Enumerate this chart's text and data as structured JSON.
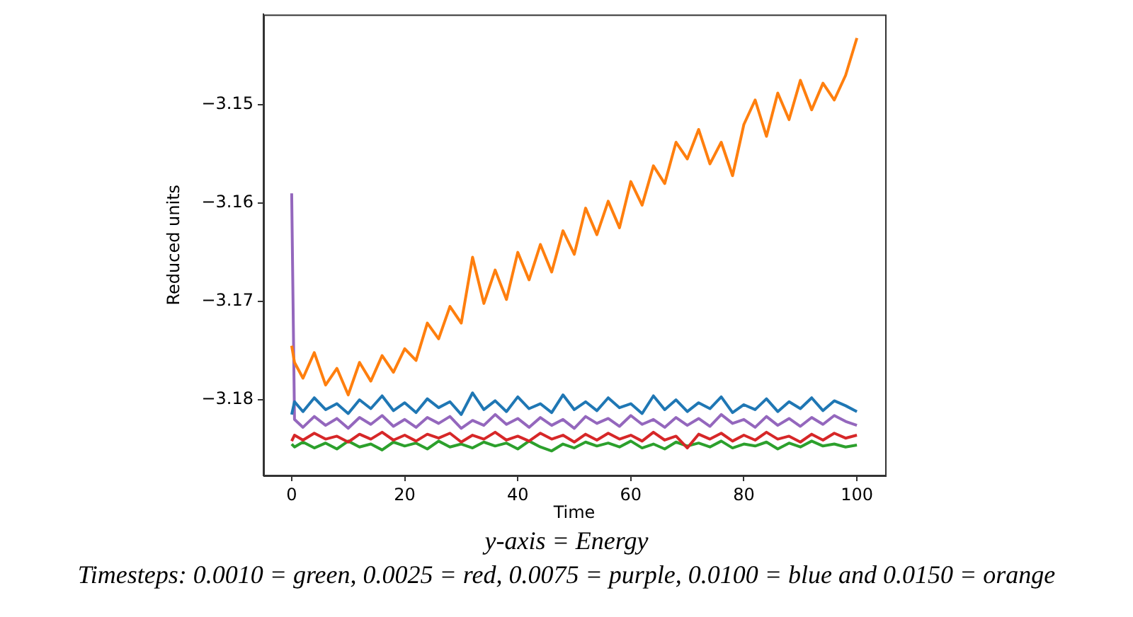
{
  "chart_data": {
    "type": "line",
    "xlabel": "Time",
    "ylabel": "Reduced units",
    "annotations": [
      "y-axis = Energy",
      "Timesteps: 0.0010 = green, 0.0025 = red, 0.0075 = purple, 0.0100 = blue and 0.0150 = orange"
    ],
    "xlim": [
      -5,
      105
    ],
    "xticks": [
      0,
      20,
      40,
      60,
      80,
      100
    ],
    "ylim": [
      -3.1877,
      -3.1408
    ],
    "yticks": [
      {
        "value": -3.18,
        "label": "−3.18"
      },
      {
        "value": -3.17,
        "label": "−3.17"
      },
      {
        "value": -3.16,
        "label": "−3.16"
      },
      {
        "value": -3.15,
        "label": "−3.15"
      }
    ],
    "grid": false,
    "legend": false,
    "marker": "none",
    "line_style": "solid",
    "x": [
      0,
      0.5,
      2,
      4,
      6,
      8,
      10,
      12,
      14,
      16,
      18,
      20,
      22,
      24,
      26,
      28,
      30,
      32,
      34,
      36,
      38,
      40,
      42,
      44,
      46,
      48,
      50,
      52,
      54,
      56,
      58,
      60,
      62,
      64,
      66,
      68,
      70,
      72,
      74,
      76,
      78,
      80,
      82,
      84,
      86,
      88,
      90,
      92,
      94,
      96,
      98,
      100
    ],
    "series": [
      {
        "color": "#2ca02c",
        "values": [
          -3.1845,
          -3.1848,
          -3.1843,
          -3.1849,
          -3.1844,
          -3.185,
          -3.1842,
          -3.1848,
          -3.1845,
          -3.1851,
          -3.1843,
          -3.1847,
          -3.1844,
          -3.185,
          -3.1842,
          -3.1848,
          -3.1845,
          -3.1849,
          -3.1843,
          -3.1847,
          -3.1844,
          -3.185,
          -3.1842,
          -3.1848,
          -3.1852,
          -3.1845,
          -3.1849,
          -3.1843,
          -3.1847,
          -3.1844,
          -3.1848,
          -3.1842,
          -3.1849,
          -3.1845,
          -3.185,
          -3.1843,
          -3.1847,
          -3.1844,
          -3.1848,
          -3.1842,
          -3.1849,
          -3.1845,
          -3.1847,
          -3.1843,
          -3.185,
          -3.1844,
          -3.1848,
          -3.1842,
          -3.1847,
          -3.1845,
          -3.1848,
          -3.1846
        ]
      },
      {
        "color": "#d62728",
        "values": [
          -3.1842,
          -3.1836,
          -3.1841,
          -3.1834,
          -3.184,
          -3.1837,
          -3.1843,
          -3.1835,
          -3.184,
          -3.1833,
          -3.1841,
          -3.1836,
          -3.1842,
          -3.1835,
          -3.1839,
          -3.1834,
          -3.1843,
          -3.1836,
          -3.184,
          -3.1833,
          -3.1841,
          -3.1837,
          -3.1842,
          -3.1834,
          -3.184,
          -3.1836,
          -3.1843,
          -3.1835,
          -3.1841,
          -3.1834,
          -3.184,
          -3.1836,
          -3.1842,
          -3.1833,
          -3.1841,
          -3.1837,
          -3.1849,
          -3.1835,
          -3.184,
          -3.1834,
          -3.1842,
          -3.1836,
          -3.1841,
          -3.1833,
          -3.184,
          -3.1837,
          -3.1843,
          -3.1835,
          -3.1841,
          -3.1834,
          -3.1839,
          -3.1836
        ]
      },
      {
        "color": "#9467bd",
        "values": [
          -3.159,
          -3.182,
          -3.1828,
          -3.1817,
          -3.1826,
          -3.1819,
          -3.1829,
          -3.1818,
          -3.1825,
          -3.1816,
          -3.1827,
          -3.182,
          -3.1828,
          -3.1818,
          -3.1824,
          -3.1817,
          -3.1829,
          -3.1821,
          -3.1826,
          -3.1815,
          -3.1825,
          -3.1819,
          -3.1828,
          -3.1818,
          -3.1826,
          -3.182,
          -3.1829,
          -3.1817,
          -3.1824,
          -3.1819,
          -3.1827,
          -3.1816,
          -3.1825,
          -3.182,
          -3.1828,
          -3.1818,
          -3.1826,
          -3.1819,
          -3.1827,
          -3.1815,
          -3.1824,
          -3.182,
          -3.1828,
          -3.1817,
          -3.1826,
          -3.1819,
          -3.1827,
          -3.1818,
          -3.1825,
          -3.1816,
          -3.1822,
          -3.1826
        ]
      },
      {
        "color": "#1f77b4",
        "values": [
          -3.1815,
          -3.1802,
          -3.1812,
          -3.1798,
          -3.181,
          -3.1804,
          -3.1814,
          -3.18,
          -3.1809,
          -3.1796,
          -3.1811,
          -3.1803,
          -3.1813,
          -3.1799,
          -3.1808,
          -3.1802,
          -3.1815,
          -3.1793,
          -3.181,
          -3.1801,
          -3.1812,
          -3.1797,
          -3.1809,
          -3.1804,
          -3.1813,
          -3.1795,
          -3.181,
          -3.1802,
          -3.1811,
          -3.1798,
          -3.1808,
          -3.1804,
          -3.1814,
          -3.1796,
          -3.181,
          -3.18,
          -3.1812,
          -3.1803,
          -3.1809,
          -3.1797,
          -3.1813,
          -3.1805,
          -3.181,
          -3.1799,
          -3.1812,
          -3.1802,
          -3.1809,
          -3.1798,
          -3.1811,
          -3.1801,
          -3.1806,
          -3.1812
        ]
      },
      {
        "color": "#ff7f0e",
        "values": [
          -3.1745,
          -3.1762,
          -3.1778,
          -3.1752,
          -3.1785,
          -3.1768,
          -3.1795,
          -3.1762,
          -3.1781,
          -3.1755,
          -3.1772,
          -3.1748,
          -3.176,
          -3.1722,
          -3.1738,
          -3.1705,
          -3.1722,
          -3.1655,
          -3.1702,
          -3.1668,
          -3.1698,
          -3.165,
          -3.1678,
          -3.1642,
          -3.167,
          -3.1628,
          -3.1652,
          -3.1605,
          -3.1632,
          -3.1598,
          -3.1625,
          -3.1578,
          -3.1602,
          -3.1562,
          -3.158,
          -3.1538,
          -3.1555,
          -3.1525,
          -3.156,
          -3.1538,
          -3.1572,
          -3.152,
          -3.1495,
          -3.1532,
          -3.1488,
          -3.1515,
          -3.1475,
          -3.1505,
          -3.1478,
          -3.1495,
          -3.147,
          -3.1432
        ]
      }
    ]
  }
}
